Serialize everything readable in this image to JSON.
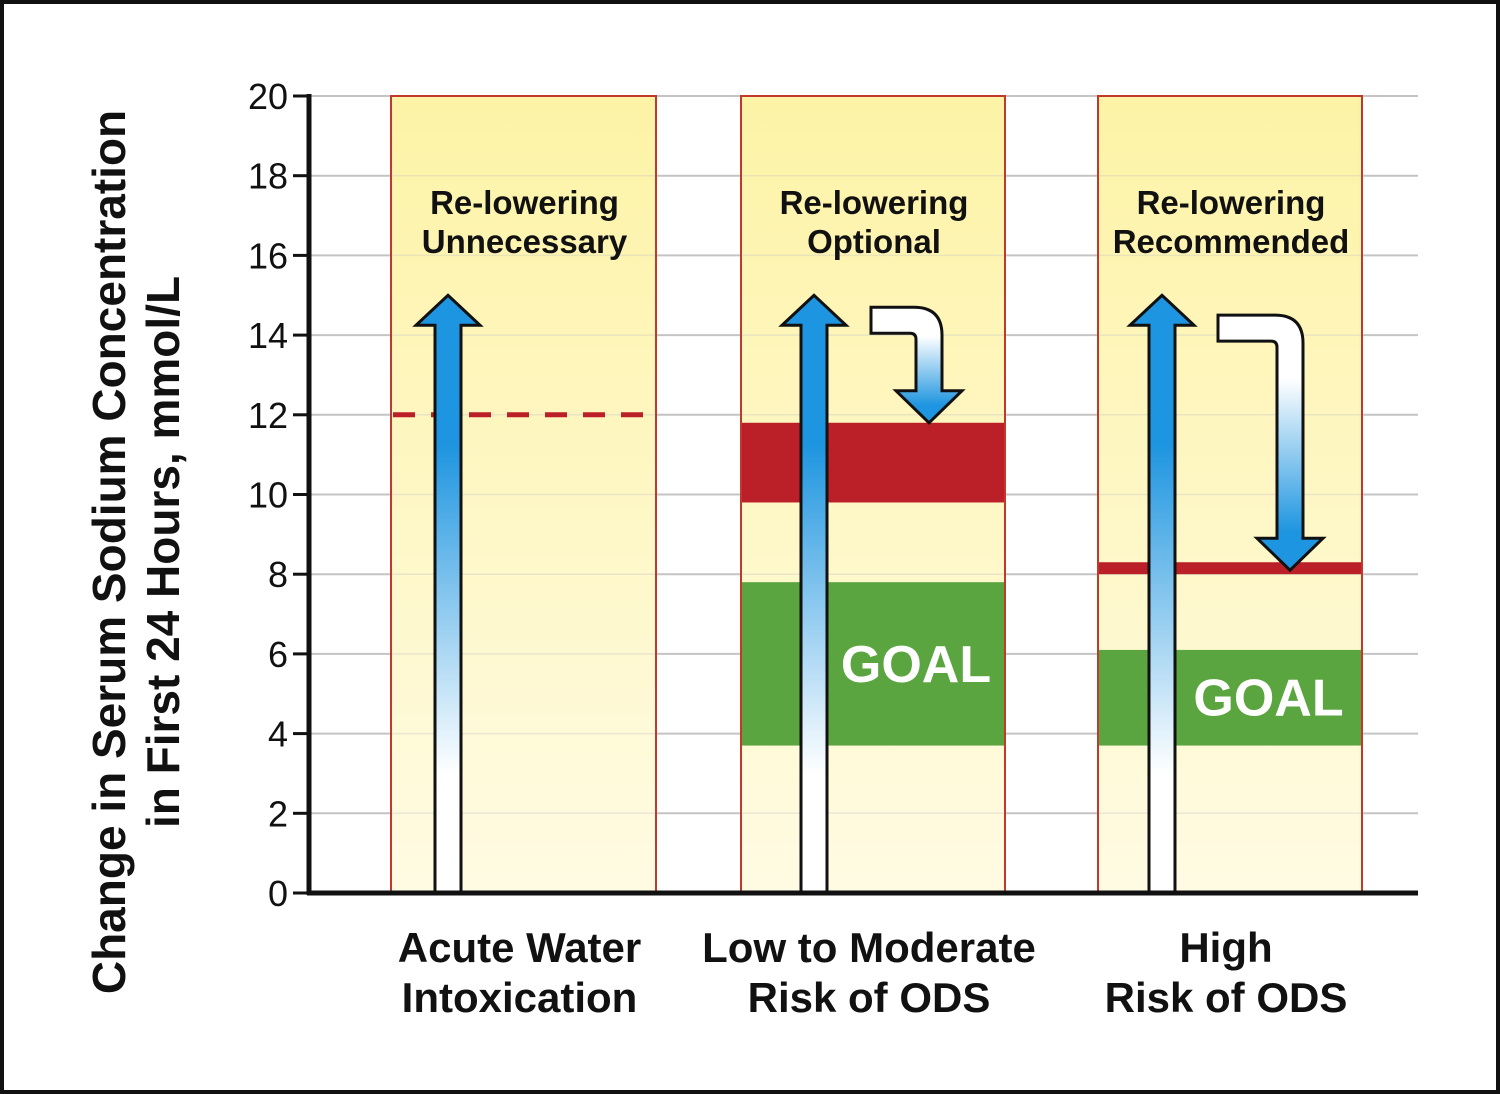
{
  "chart_data": {
    "type": "bar",
    "title": "",
    "ylabel_lines": [
      "Change in Serum Sodium Concentration",
      "in First 24 Hours, mmol/L"
    ],
    "xlabel": "",
    "ylim": [
      0,
      20
    ],
    "yticks": [
      "0",
      "2",
      "4",
      "6",
      "8",
      "10",
      "12",
      "14",
      "16",
      "18",
      "20"
    ],
    "grid": true,
    "categories": [
      {
        "label_lines": [
          "Acute Water",
          "Intoxication"
        ],
        "top_text": [
          "Re-lowering",
          "Unnecessary"
        ],
        "increase_arrow_to": 15,
        "limit_line": 12,
        "limit_band": null,
        "goal_band": null,
        "goal_label": "",
        "relower_arrow": null
      },
      {
        "label_lines": [
          "Low to Moderate",
          "Risk of ODS"
        ],
        "top_text": [
          "Re-lowering",
          "Optional"
        ],
        "increase_arrow_to": 15,
        "limit_line": null,
        "limit_band": [
          9.8,
          11.8
        ],
        "goal_band": [
          3.7,
          7.8
        ],
        "goal_label": "GOAL",
        "relower_arrow": [
          14.7,
          11.8
        ]
      },
      {
        "label_lines": [
          "High",
          "Risk of ODS"
        ],
        "top_text": [
          "Re-lowering",
          "Recommended"
        ],
        "increase_arrow_to": 15,
        "limit_line": null,
        "limit_band": [
          8.0,
          8.3
        ],
        "goal_band": [
          3.7,
          6.1
        ],
        "goal_label": "GOAL",
        "relower_arrow": [
          14.5,
          8.1
        ]
      }
    ]
  },
  "colors": {
    "panel_top": "#fdf3a6",
    "panel_bottom": "#fffbe3",
    "panel_border": "#c0392b",
    "limit": "#bb1f27",
    "goal": "#5aa53f",
    "arrow_blue": "#1e95e0",
    "grid": "#c4c4c4",
    "axis": "#111111"
  }
}
